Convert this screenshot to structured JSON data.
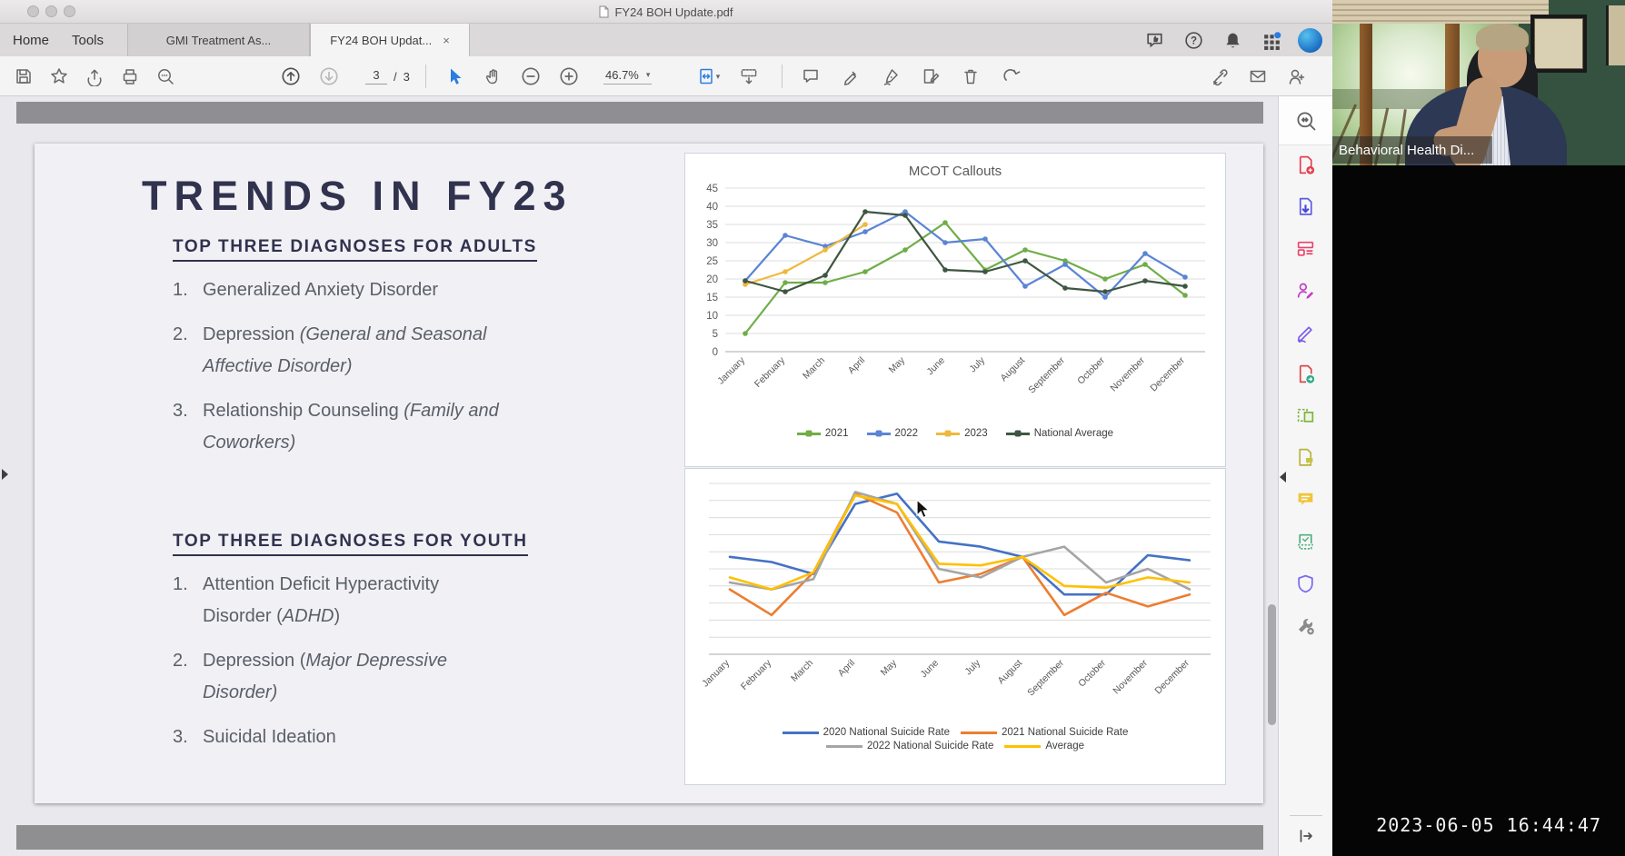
{
  "window": {
    "title": "FY24 BOH Update.pdf"
  },
  "chrome": {
    "menu": [
      {
        "label": "Home"
      },
      {
        "label": "Tools"
      }
    ],
    "tabs": [
      {
        "label": "GMI Treatment As...",
        "active": false
      },
      {
        "label": "FY24 BOH Updat...",
        "active": true,
        "close": "×"
      }
    ],
    "top_right_icons": [
      "feedback-icon",
      "help-icon",
      "notifications-icon",
      "apps-grid-icon",
      "account-avatar"
    ]
  },
  "toolbar": {
    "page": {
      "current": "3",
      "separator": "/",
      "total": "3"
    },
    "zoom": "46.7%",
    "buttons": [
      "save",
      "star-favorite",
      "share-file",
      "print",
      "find",
      "previous-page",
      "next-page",
      "select-tool",
      "hand-tool",
      "zoom-out",
      "zoom-in",
      "fit-width",
      "scroll-mode",
      "comment",
      "highlight",
      "fill-sign",
      "edit-page",
      "delete-pages",
      "rotate",
      "get-link",
      "email",
      "add-people"
    ]
  },
  "right_panel": {
    "tools": [
      "search-tools",
      "create-pdf",
      "export-pdf",
      "organize-pages",
      "request-signatures",
      "fill-and-sign",
      "send-for-review",
      "edit-pdf",
      "add-comments-doc",
      "comment",
      "scan-ocr",
      "protect",
      "more-tools"
    ]
  },
  "slide": {
    "title": "TRENDS IN FY23",
    "sections": [
      {
        "heading": "TOP THREE DIAGNOSES FOR ADULTS",
        "items": [
          {
            "num": "1.",
            "lines": [
              [
                {
                  "t": "Generalized Anxiety Disorder",
                  "i": false
                }
              ]
            ]
          },
          {
            "num": "2.",
            "lines": [
              [
                {
                  "t": "Depression ",
                  "i": false
                },
                {
                  "t": "(General and Seasonal",
                  "i": true
                }
              ],
              [
                {
                  "t": "Affective Disorder)",
                  "i": true
                }
              ]
            ]
          },
          {
            "num": "3.",
            "lines": [
              [
                {
                  "t": "Relationship Counseling ",
                  "i": false
                },
                {
                  "t": "(Family and",
                  "i": true
                }
              ],
              [
                {
                  "t": "Coworkers)",
                  "i": true
                }
              ]
            ]
          }
        ]
      },
      {
        "heading": "TOP THREE DIAGNOSES FOR YOUTH",
        "items": [
          {
            "num": "1.",
            "lines": [
              [
                {
                  "t": "Attention Deficit Hyperactivity",
                  "i": false
                }
              ],
              [
                {
                  "t": "Disorder (",
                  "i": false
                },
                {
                  "t": "ADHD",
                  "i": true
                },
                {
                  "t": ")",
                  "i": false
                }
              ]
            ]
          },
          {
            "num": "2.",
            "lines": [
              [
                {
                  "t": "Depression (",
                  "i": false
                },
                {
                  "t": "Major Depressive",
                  "i": true
                }
              ],
              [
                {
                  "t": "Disorder)",
                  "i": true
                }
              ]
            ]
          },
          {
            "num": "3.",
            "lines": [
              [
                {
                  "t": "Suicidal Ideation",
                  "i": false
                }
              ]
            ]
          }
        ]
      }
    ]
  },
  "chart_data": [
    {
      "type": "line",
      "title": "MCOT Callouts",
      "categories": [
        "January",
        "February",
        "March",
        "April",
        "May",
        "June",
        "July",
        "August",
        "September",
        "October",
        "November",
        "December"
      ],
      "ylim": [
        0,
        45
      ],
      "ytick_step": 5,
      "y_axis_labels": true,
      "grid": true,
      "legend_position": "bottom",
      "series": [
        {
          "name": "2021",
          "color": "#70AD47",
          "values": [
            5,
            19,
            19,
            22,
            28,
            35.5,
            22.5,
            28,
            25,
            20,
            24,
            15.5
          ]
        },
        {
          "name": "2022",
          "color": "#5B84D5",
          "values": [
            19.5,
            32,
            29,
            33,
            38.5,
            30,
            31,
            18,
            24,
            15,
            27,
            20.5
          ]
        },
        {
          "name": "2023",
          "color": "#EFB93E",
          "values": [
            18.5,
            22,
            28,
            35,
            null,
            null,
            null,
            null,
            null,
            null,
            null,
            null
          ]
        },
        {
          "name": "National Average",
          "color": "#3E5641",
          "values": [
            19.5,
            16.5,
            21,
            38.5,
            37.5,
            22.5,
            22,
            25,
            17.5,
            16.5,
            19.5,
            18
          ]
        }
      ]
    },
    {
      "type": "line",
      "title": "",
      "categories": [
        "January",
        "February",
        "March",
        "April",
        "May",
        "June",
        "July",
        "August",
        "September",
        "October",
        "November",
        "December"
      ],
      "ylim": [
        0,
        100
      ],
      "ytick_step": 10,
      "y_axis_labels": false,
      "grid": true,
      "legend_position": "bottom",
      "series": [
        {
          "name": "2020 National Suicide Rate",
          "color": "#4472C4",
          "values": [
            57,
            54,
            47,
            88,
            94,
            66,
            63,
            57,
            35,
            35,
            58,
            55
          ]
        },
        {
          "name": "2021 National Suicide Rate",
          "color": "#ED7D31",
          "values": [
            38,
            23,
            48,
            94,
            83,
            42,
            47,
            57,
            23,
            36,
            28,
            35
          ]
        },
        {
          "name": "2022 National Suicide Rate",
          "color": "#A5A5A5",
          "values": [
            42,
            38,
            44,
            95,
            88,
            50,
            45,
            57,
            63,
            42,
            50,
            38
          ]
        },
        {
          "name": "Average",
          "color": "#FFC000",
          "values": [
            45,
            38,
            48,
            93,
            88,
            53,
            52,
            57,
            40,
            39,
            45,
            42
          ]
        }
      ]
    }
  ],
  "video": {
    "participant_label": "Behavioral Health Di...",
    "timestamp": "2023-06-05 16:44:47"
  },
  "colors": {
    "accent_blue": "#2A7DE1",
    "slide_title": "#31324E",
    "slide_body": "#5A5F67"
  }
}
